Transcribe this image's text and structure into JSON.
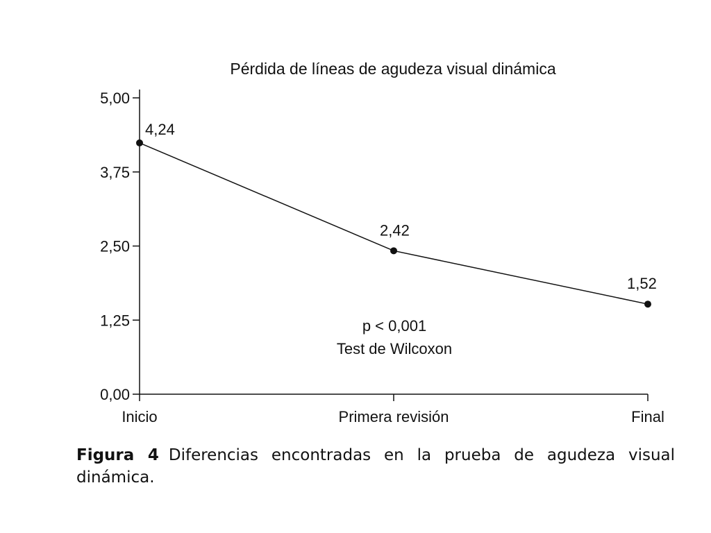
{
  "chart_data": {
    "type": "line",
    "title": "Pérdida de líneas de agudeza visual dinámica",
    "categories": [
      "Inicio",
      "Primera revisión",
      "Final"
    ],
    "series": [
      {
        "values": [
          4.24,
          2.42,
          1.52
        ],
        "labels": [
          "4,24",
          "2,42",
          "1,52"
        ]
      }
    ],
    "ylim": [
      0,
      5
    ],
    "yticks": [
      0,
      1.25,
      2.5,
      3.75,
      5
    ],
    "ytick_labels": [
      "0,00",
      "1,25",
      "2,50",
      "3,75",
      "5,00"
    ],
    "grid": false,
    "annotation": [
      "p < 0,001",
      "Test de Wilcoxon"
    ],
    "line_color": "#111111"
  },
  "caption": {
    "label": "Figura 4",
    "text": "Diferencias encontradas en la prueba de agudeza visual dinámica."
  }
}
